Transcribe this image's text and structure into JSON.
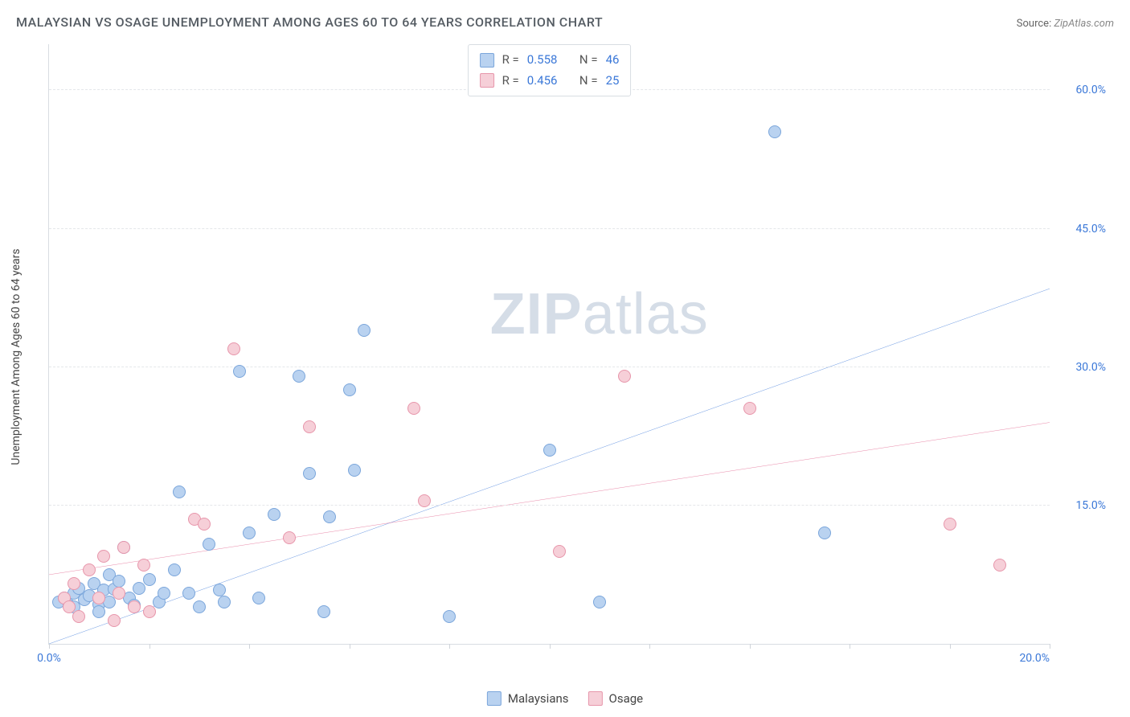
{
  "title": "MALAYSIAN VS OSAGE UNEMPLOYMENT AMONG AGES 60 TO 64 YEARS CORRELATION CHART",
  "source_label": "Source:",
  "source_value": "ZipAtlas.com",
  "y_axis_title": "Unemployment Among Ages 60 to 64 years",
  "watermark_zip": "ZIP",
  "watermark_atlas": "atlas",
  "chart": {
    "type": "scatter-with-trendlines",
    "xlim": [
      0,
      20
    ],
    "ylim": [
      0,
      65
    ],
    "x_ticks": [
      0,
      2,
      4,
      6,
      8,
      10,
      12,
      14,
      16,
      18,
      20
    ],
    "x_tick_labels": {
      "0": "0.0%",
      "20": "20.0%"
    },
    "y_gridlines": [
      15,
      30,
      45,
      60
    ],
    "y_tick_labels": {
      "15": "15.0%",
      "30": "30.0%",
      "45": "45.0%",
      "60": "60.0%"
    },
    "background_color": "#ffffff",
    "grid_color": "#e4e7ea",
    "axis_color": "#d8dde2",
    "tick_label_color": "#3b78d8",
    "marker_radius": 8,
    "marker_border_width": 1.5,
    "series": [
      {
        "key": "malaysians",
        "label": "Malaysians",
        "fill": "#b9d2f0",
        "stroke": "#7ba6db",
        "line_color": "#2f6fd6",
        "line_width": 2,
        "r_label": "R =",
        "r_value": "0.558",
        "n_label": "N =",
        "n_value": "46",
        "trend": {
          "x1": 0,
          "y1": 0,
          "x2": 20,
          "y2": 38.5
        },
        "points": [
          [
            0.2,
            4.5
          ],
          [
            0.3,
            5.0
          ],
          [
            0.4,
            4.2
          ],
          [
            0.5,
            5.5
          ],
          [
            0.5,
            4.0
          ],
          [
            0.6,
            6.0
          ],
          [
            0.7,
            4.8
          ],
          [
            0.8,
            5.2
          ],
          [
            0.9,
            6.5
          ],
          [
            1.0,
            4.3
          ],
          [
            1.1,
            5.8
          ],
          [
            1.2,
            7.5
          ],
          [
            1.2,
            4.5
          ],
          [
            1.3,
            5.9
          ],
          [
            1.4,
            6.8
          ],
          [
            1.5,
            10.5
          ],
          [
            1.6,
            5.0
          ],
          [
            1.7,
            4.2
          ],
          [
            1.8,
            6.0
          ],
          [
            2.0,
            7.0
          ],
          [
            2.2,
            4.5
          ],
          [
            2.3,
            5.5
          ],
          [
            2.5,
            8.0
          ],
          [
            2.6,
            16.5
          ],
          [
            2.8,
            5.5
          ],
          [
            3.0,
            4.0
          ],
          [
            3.2,
            10.8
          ],
          [
            3.4,
            5.8
          ],
          [
            3.5,
            4.5
          ],
          [
            3.8,
            29.5
          ],
          [
            4.0,
            12.0
          ],
          [
            4.2,
            5.0
          ],
          [
            4.5,
            14.0
          ],
          [
            5.0,
            29.0
          ],
          [
            5.2,
            18.5
          ],
          [
            5.5,
            3.5
          ],
          [
            5.6,
            13.8
          ],
          [
            6.0,
            27.5
          ],
          [
            6.1,
            18.8
          ],
          [
            6.3,
            34.0
          ],
          [
            8.0,
            3.0
          ],
          [
            10.0,
            21.0
          ],
          [
            11.0,
            4.5
          ],
          [
            14.5,
            55.5
          ],
          [
            15.5,
            12.0
          ],
          [
            1.0,
            3.5
          ]
        ]
      },
      {
        "key": "osage",
        "label": "Osage",
        "fill": "#f6cfd8",
        "stroke": "#e796ab",
        "line_color": "#e05a87",
        "line_width": 2,
        "r_label": "R =",
        "r_value": "0.456",
        "n_label": "N =",
        "n_value": "25",
        "trend": {
          "x1": 0,
          "y1": 7.5,
          "x2": 20,
          "y2": 24
        },
        "points": [
          [
            0.3,
            5.0
          ],
          [
            0.4,
            4.0
          ],
          [
            0.5,
            6.5
          ],
          [
            0.6,
            3.0
          ],
          [
            0.8,
            8.0
          ],
          [
            1.0,
            5.0
          ],
          [
            1.1,
            9.5
          ],
          [
            1.3,
            2.5
          ],
          [
            1.4,
            5.5
          ],
          [
            1.5,
            10.5
          ],
          [
            1.7,
            4.0
          ],
          [
            1.9,
            8.5
          ],
          [
            2.0,
            3.5
          ],
          [
            2.9,
            13.5
          ],
          [
            3.1,
            13.0
          ],
          [
            3.7,
            32.0
          ],
          [
            4.8,
            11.5
          ],
          [
            5.2,
            23.5
          ],
          [
            7.3,
            25.5
          ],
          [
            7.5,
            15.5
          ],
          [
            10.2,
            10.0
          ],
          [
            11.5,
            29.0
          ],
          [
            14.0,
            25.5
          ],
          [
            18.0,
            13.0
          ],
          [
            19.0,
            8.5
          ]
        ]
      }
    ]
  }
}
